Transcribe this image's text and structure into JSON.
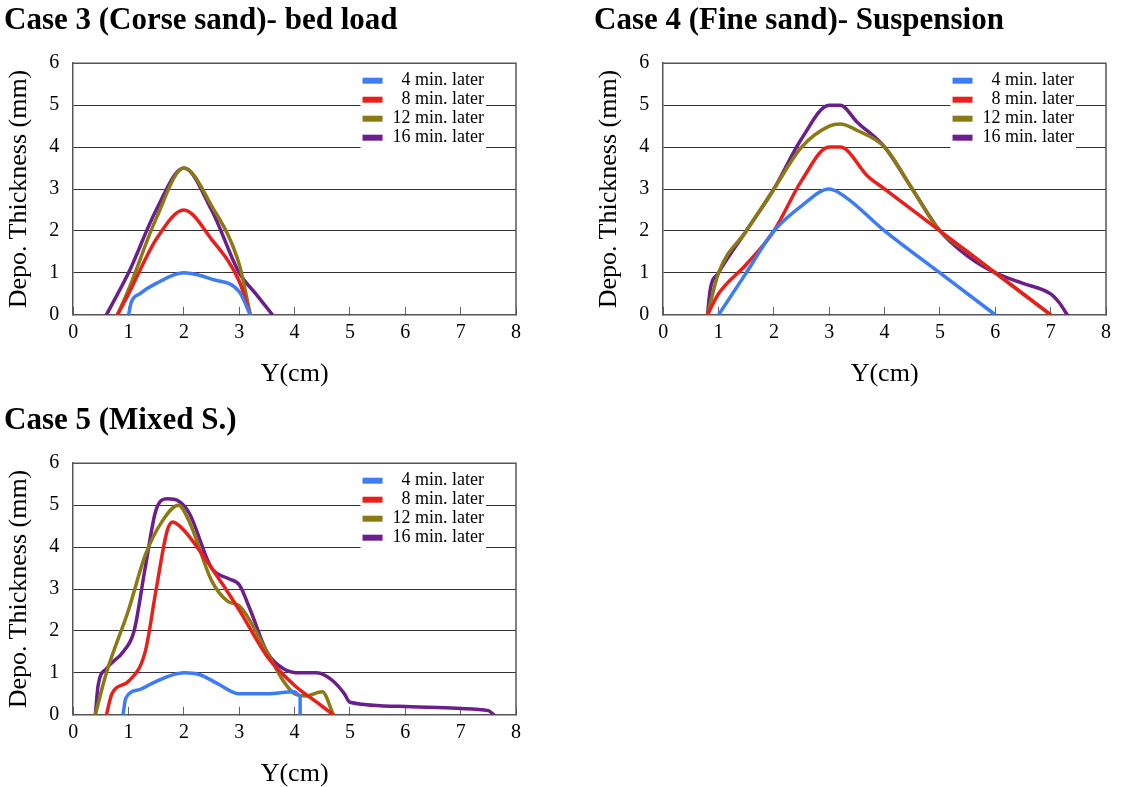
{
  "chart_data": [
    {
      "type": "line",
      "title": "Case 3 (Corse sand)- bed load",
      "xlabel": "Y(cm)",
      "ylabel": "Depo. Thickness (mm)",
      "xlim": [
        0,
        8
      ],
      "xticks": [
        0,
        1,
        2,
        3,
        4,
        5,
        6,
        7,
        8
      ],
      "ylim": [
        0,
        6
      ],
      "yticks": [
        0,
        1,
        2,
        3,
        4,
        5,
        6
      ],
      "grid": "y",
      "legend": "top right",
      "series": [
        {
          "name": "4 min. later",
          "color": "#3d7cf5",
          "x": [
            1,
            1.05,
            1.2,
            1.5,
            2,
            2.5,
            3,
            3.2
          ],
          "values": [
            0,
            0.3,
            0.5,
            0.75,
            1,
            0.85,
            0.55,
            0
          ]
        },
        {
          "name": "8 min. later",
          "color": "#e8201c",
          "x": [
            0.8,
            1,
            1.5,
            2,
            2.5,
            3,
            3.2
          ],
          "values": [
            0,
            0.5,
            1.8,
            2.5,
            1.8,
            0.8,
            0
          ]
        },
        {
          "name": "12 min. later",
          "color": "#8b7a14",
          "x": [
            0.8,
            1,
            1.5,
            2,
            2.5,
            3,
            3.2
          ],
          "values": [
            0,
            0.6,
            2.3,
            3.5,
            2.6,
            1.2,
            0
          ]
        },
        {
          "name": "16 min. later",
          "color": "#6a1f8c",
          "x": [
            0.6,
            1,
            1.5,
            2,
            2.5,
            3,
            3.3,
            3.6
          ],
          "values": [
            0,
            1,
            2.5,
            3.5,
            2.5,
            1,
            0.5,
            0
          ]
        }
      ]
    },
    {
      "type": "line",
      "title": "Case 4 (Fine sand)- Suspension",
      "xlabel": "Y(cm)",
      "ylabel": "Depo. Thickness (mm)",
      "xlim": [
        0,
        8
      ],
      "xticks": [
        0,
        1,
        2,
        3,
        4,
        5,
        6,
        7,
        8
      ],
      "ylim": [
        0,
        6
      ],
      "yticks": [
        0,
        1,
        2,
        3,
        4,
        5,
        6
      ],
      "grid": "y",
      "legend": "top right",
      "series": [
        {
          "name": "4 min. later",
          "color": "#3d7cf5",
          "x": [
            1,
            1.5,
            2,
            2.5,
            3,
            3.3,
            4,
            5,
            6
          ],
          "values": [
            0,
            1,
            2,
            2.6,
            3,
            2.8,
            2,
            1,
            0
          ]
        },
        {
          "name": "8 min. later",
          "color": "#e8201c",
          "x": [
            0.8,
            1,
            1.5,
            2,
            2.5,
            3,
            3.2,
            3.7,
            4,
            5,
            6,
            7
          ],
          "values": [
            0,
            0.5,
            1.2,
            2,
            3.2,
            4,
            4,
            3.3,
            3,
            2,
            1,
            0
          ]
        },
        {
          "name": "12 min. later",
          "color": "#8b7a14",
          "x": [
            0.8,
            1,
            1.5,
            2,
            2.5,
            3,
            3.2,
            3.5,
            4,
            4.5,
            5,
            5.5,
            6,
            7
          ],
          "values": [
            0,
            1,
            2,
            3,
            4,
            4.5,
            4.55,
            4.4,
            4,
            3,
            2,
            1.5,
            1,
            0
          ]
        },
        {
          "name": "16 min. later",
          "color": "#6a1f8c",
          "x": [
            0.8,
            0.85,
            1,
            1.5,
            2,
            2.5,
            3,
            3.2,
            3.5,
            4,
            4.5,
            5,
            5.5,
            6,
            6.5,
            7,
            7.15,
            7.3
          ],
          "values": [
            0,
            0.6,
            1,
            2,
            3,
            4.2,
            5,
            5,
            4.6,
            4,
            3,
            2,
            1.4,
            1,
            0.75,
            0.5,
            0.3,
            0
          ]
        }
      ]
    },
    {
      "type": "line",
      "title": "Case 5 (Mixed S.)",
      "xlabel": "Y(cm)",
      "ylabel": "Depo. Thickness (mm)",
      "xlim": [
        0,
        8
      ],
      "xticks": [
        0,
        1,
        2,
        3,
        4,
        5,
        6,
        7,
        8
      ],
      "ylim": [
        0,
        6
      ],
      "yticks": [
        0,
        1,
        2,
        3,
        4,
        5,
        6
      ],
      "grid": "y",
      "legend": "top right",
      "series": [
        {
          "name": "4 min. later",
          "color": "#3d7cf5",
          "x": [
            0.9,
            0.95,
            1.2,
            1.5,
            2,
            2.3,
            2.6,
            3,
            3.5,
            4,
            4.1,
            4.1
          ],
          "values": [
            0,
            0.4,
            0.6,
            0.8,
            1,
            0.95,
            0.75,
            0.5,
            0.5,
            0.55,
            0.45,
            0
          ]
        },
        {
          "name": "8 min. later",
          "color": "#e8201c",
          "x": [
            0.6,
            0.7,
            1,
            1.3,
            1.5,
            1.7,
            1.8,
            2,
            2.5,
            3,
            3.5,
            4,
            4.4,
            4.7
          ],
          "values": [
            0,
            0.5,
            0.8,
            1.5,
            3,
            4.4,
            4.6,
            4.4,
            3.5,
            2.5,
            1.4,
            0.7,
            0.3,
            0
          ]
        },
        {
          "name": "12 min. later",
          "color": "#8b7a14",
          "x": [
            0.4,
            0.6,
            1,
            1.3,
            1.6,
            1.9,
            2.1,
            2.5,
            2.8,
            3,
            3.5,
            3.8,
            4,
            4.2,
            4.5,
            4.7
          ],
          "values": [
            0,
            1,
            2.5,
            3.8,
            4.6,
            5,
            4.6,
            3.2,
            2.7,
            2.6,
            1.5,
            0.8,
            0.5,
            0.45,
            0.55,
            0
          ]
        },
        {
          "name": "16 min. later",
          "color": "#6a1f8c",
          "x": [
            0.4,
            0.45,
            0.6,
            0.9,
            1.1,
            1.3,
            1.5,
            1.7,
            1.9,
            2.1,
            2.5,
            2.8,
            3,
            3.2,
            3.5,
            3.8,
            4.1,
            4.4,
            4.7,
            4.9,
            5,
            6,
            7,
            7.5,
            7.6
          ],
          "values": [
            0,
            0.7,
            1.1,
            1.5,
            2,
            3.5,
            4.9,
            5.15,
            5.1,
            4.8,
            3.5,
            3.25,
            3.1,
            2.5,
            1.5,
            1.1,
            1,
            1,
            0.8,
            0.5,
            0.3,
            0.2,
            0.15,
            0.1,
            0
          ]
        }
      ]
    }
  ]
}
